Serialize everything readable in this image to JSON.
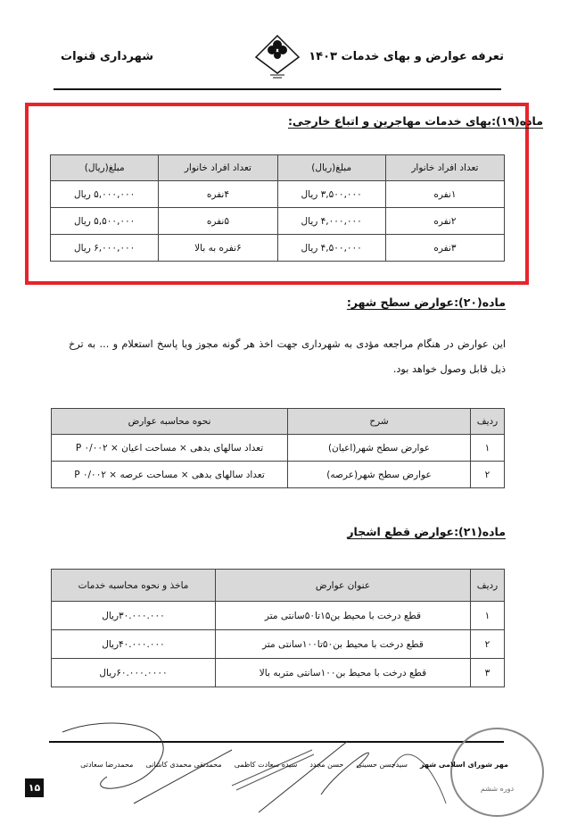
{
  "header": {
    "title": "تعرفه عوارض و بهای خدمات ۱۴۰۳",
    "municipality": "شهرداری قنوات"
  },
  "section19": {
    "heading": "ماده(۱۹):بهای خدمات مهاجرین و اتباع خارجی:",
    "highlight_color": "#e8232b",
    "headers": [
      "تعداد افراد خانوار",
      "مبلغ(ریال)",
      "تعداد افراد خانوار",
      "مبلغ(ریال)"
    ],
    "rows": [
      [
        "۱نفره",
        "۳,۵۰۰,۰۰۰ ریال",
        "۴نفره",
        "۵,۰۰۰,۰۰۰ ریال"
      ],
      [
        "۲نفره",
        "۴,۰۰۰,۰۰۰ ریال",
        "۵نفره",
        "۵,۵۰۰,۰۰۰ ریال"
      ],
      [
        "۳نفره",
        "۴,۵۰۰,۰۰۰ ریال",
        "۶نفره به بالا",
        "۶,۰۰۰,۰۰۰ ریال"
      ]
    ]
  },
  "section20": {
    "heading": "ماده(۲۰):عوارض سطح شهر:",
    "paragraph": "این عوارض در هنگام مراجعه مؤدی به شهرداری جهت اخذ هر گونه مجوز ویا پاسخ استعلام و ... به ترخ ذیل قابل وصول خواهد بود.",
    "headers": [
      "ردیف",
      "شرح",
      "نحوه محاسبه عوارض"
    ],
    "rows": [
      [
        "۱",
        "عوارض سطح شهر(اعیان)",
        "تعداد سالهای بدهی × مساحت اعیان × P ۰/۰۰۲"
      ],
      [
        "۲",
        "عوارض سطح شهر(عرصه)",
        "تعداد سالهای بدهی × مساحت عرصه × P ۰/۰۰۲"
      ]
    ]
  },
  "section21": {
    "heading": "ماده(۲۱):عوارض قطع اشجار",
    "headers": [
      "ردیف",
      "عنوان عوارض",
      "ماخذ و نحوه محاسبه خدمات"
    ],
    "rows": [
      [
        "۱",
        "قطع درخت با محیط بن۱۵تا۵۰سانتی متر",
        "۳۰.۰۰۰.۰۰۰ریال"
      ],
      [
        "۲",
        "قطع درخت با محیط بن۵۰تا۱۰۰سانتی متر",
        "۴۰.۰۰۰.۰۰۰ریال"
      ],
      [
        "۳",
        "قطع درخت با محیط بن۱۰۰سانتی متربه بالا",
        "۶۰.۰۰۰.۰۰۰۰ریال"
      ]
    ]
  },
  "footer": {
    "signatories": [
      "مهر شورای اسلامی شهر",
      "سیدحسن حسینی",
      "حسن مجدد",
      "سیده سعادت کاظمی",
      "محمدتقی محمدی کاشانی",
      "محمدرضا سعادتی"
    ],
    "stamp_text": "دوره ششم",
    "page_number": "۱۵"
  }
}
